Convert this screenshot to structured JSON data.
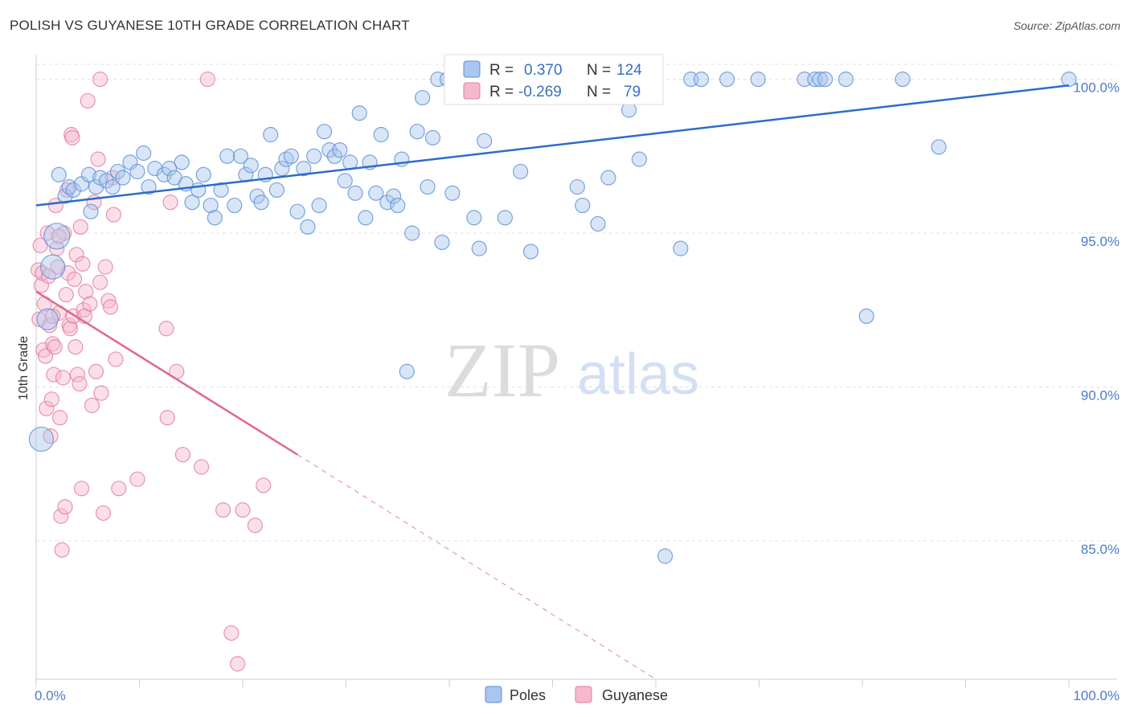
{
  "header": {
    "title": "POLISH VS GUYANESE 10TH GRADE CORRELATION CHART",
    "source": "Source: ZipAtlas.com"
  },
  "legend": {
    "rows": [
      {
        "r_label": "R =",
        "r_value": "0.370",
        "n_label": "N =",
        "n_value": "124"
      },
      {
        "r_label": "R =",
        "r_value": "-0.269",
        "n_label": "N =",
        "n_value": "79"
      }
    ]
  },
  "watermark": {
    "zip": "ZIP",
    "atlas": "atlas"
  },
  "colors": {
    "poles_fill": "#a8c6ee",
    "poles_stroke": "#5b8fd6",
    "poles_line": "#2d6cc8",
    "guyanese_fill": "#f6b8cc",
    "guyanese_stroke": "#e27ca0",
    "guyanese_line": "#e06893"
  },
  "chart_data": {
    "type": "scatter",
    "title": "POLISH VS GUYANESE 10TH GRADE CORRELATION CHART",
    "ylabel": "10th Grade",
    "xlim": [
      0,
      100
    ],
    "ylim": [
      80.5,
      100.8
    ],
    "y_ticks": [
      {
        "value": 85,
        "label": "85.0%"
      },
      {
        "value": 90,
        "label": "90.0%"
      },
      {
        "value": 95,
        "label": "95.0%"
      },
      {
        "value": 100,
        "label": "100.0%"
      }
    ],
    "x_tick_labels": [
      {
        "value": 0,
        "label": "0.0%"
      },
      {
        "value": 100,
        "label": "100.0%"
      }
    ],
    "grid": "horizontal dashed",
    "legend_placement": "top-center",
    "series": [
      {
        "name": "Poles",
        "r": 0.37,
        "n": 124,
        "trend": {
          "x": [
            0,
            100
          ],
          "y": [
            95.9,
            99.8
          ],
          "style": "solid"
        },
        "points": [
          [
            0.5,
            88.3
          ],
          [
            1.1,
            92.2
          ],
          [
            1.6,
            93.9
          ],
          [
            2.0,
            94.9
          ],
          [
            2.2,
            96.9
          ],
          [
            2.8,
            96.2
          ],
          [
            3.2,
            96.5
          ],
          [
            3.6,
            96.4
          ],
          [
            4.4,
            96.6
          ],
          [
            5.1,
            96.9
          ],
          [
            5.3,
            95.7
          ],
          [
            5.8,
            96.5
          ],
          [
            6.2,
            96.8
          ],
          [
            6.8,
            96.7
          ],
          [
            7.4,
            96.5
          ],
          [
            7.9,
            97.0
          ],
          [
            8.4,
            96.8
          ],
          [
            9.1,
            97.3
          ],
          [
            9.8,
            97.0
          ],
          [
            10.4,
            97.6
          ],
          [
            10.9,
            96.5
          ],
          [
            11.5,
            97.1
          ],
          [
            12.4,
            96.9
          ],
          [
            12.9,
            97.1
          ],
          [
            13.4,
            96.8
          ],
          [
            14.1,
            97.3
          ],
          [
            14.5,
            96.6
          ],
          [
            15.1,
            96.0
          ],
          [
            15.7,
            96.4
          ],
          [
            16.2,
            96.9
          ],
          [
            16.9,
            95.9
          ],
          [
            17.3,
            95.5
          ],
          [
            17.9,
            96.4
          ],
          [
            18.5,
            97.5
          ],
          [
            19.2,
            95.9
          ],
          [
            19.8,
            97.5
          ],
          [
            20.3,
            96.9
          ],
          [
            20.8,
            97.2
          ],
          [
            21.4,
            96.2
          ],
          [
            21.8,
            96.0
          ],
          [
            22.2,
            96.9
          ],
          [
            22.7,
            98.2
          ],
          [
            23.3,
            96.4
          ],
          [
            23.8,
            97.1
          ],
          [
            24.2,
            97.4
          ],
          [
            24.7,
            97.5
          ],
          [
            25.3,
            95.7
          ],
          [
            25.9,
            97.1
          ],
          [
            26.3,
            95.2
          ],
          [
            26.9,
            97.5
          ],
          [
            27.4,
            95.9
          ],
          [
            27.9,
            98.3
          ],
          [
            28.4,
            97.7
          ],
          [
            28.9,
            97.5
          ],
          [
            29.4,
            97.7
          ],
          [
            29.9,
            96.7
          ],
          [
            30.4,
            97.3
          ],
          [
            30.9,
            96.3
          ],
          [
            31.3,
            98.9
          ],
          [
            31.9,
            95.5
          ],
          [
            32.3,
            97.3
          ],
          [
            32.9,
            96.3
          ],
          [
            33.4,
            98.2
          ],
          [
            34.0,
            96.0
          ],
          [
            34.6,
            96.2
          ],
          [
            35.0,
            95.9
          ],
          [
            35.4,
            97.4
          ],
          [
            35.9,
            90.5
          ],
          [
            36.4,
            95.0
          ],
          [
            36.9,
            98.3
          ],
          [
            37.4,
            99.4
          ],
          [
            37.9,
            96.5
          ],
          [
            38.4,
            98.1
          ],
          [
            38.9,
            100.0
          ],
          [
            39.3,
            94.7
          ],
          [
            39.8,
            100.0
          ],
          [
            40.3,
            96.3
          ],
          [
            40.9,
            99.6
          ],
          [
            41.5,
            100.0
          ],
          [
            42.0,
            100.0
          ],
          [
            42.4,
            95.5
          ],
          [
            42.9,
            94.5
          ],
          [
            43.4,
            98.0
          ],
          [
            43.9,
            100.0
          ],
          [
            44.4,
            100.0
          ],
          [
            44.9,
            100.0
          ],
          [
            45.4,
            95.5
          ],
          [
            45.9,
            100.0
          ],
          [
            46.4,
            100.0
          ],
          [
            46.9,
            97.0
          ],
          [
            47.4,
            100.0
          ],
          [
            47.9,
            94.4
          ],
          [
            48.4,
            100.0
          ],
          [
            48.9,
            100.0
          ],
          [
            49.4,
            100.0
          ],
          [
            49.9,
            100.0
          ],
          [
            50.4,
            100.0
          ],
          [
            50.9,
            100.0
          ],
          [
            51.4,
            100.0
          ],
          [
            51.9,
            100.0
          ],
          [
            52.4,
            96.5
          ],
          [
            52.9,
            95.9
          ],
          [
            53.4,
            100.0
          ],
          [
            53.9,
            100.0
          ],
          [
            54.4,
            95.3
          ],
          [
            54.9,
            100.0
          ],
          [
            55.4,
            96.8
          ],
          [
            55.9,
            100.0
          ],
          [
            56.4,
            100.0
          ],
          [
            57.4,
            99.0
          ],
          [
            58.4,
            97.4
          ],
          [
            60.9,
            84.5
          ],
          [
            62.4,
            94.5
          ],
          [
            63.4,
            100.0
          ],
          [
            64.4,
            100.0
          ],
          [
            66.9,
            100.0
          ],
          [
            69.9,
            100.0
          ],
          [
            74.4,
            100.0
          ],
          [
            75.4,
            100.0
          ],
          [
            75.9,
            100.0
          ],
          [
            76.4,
            100.0
          ],
          [
            78.4,
            100.0
          ],
          [
            80.4,
            92.3
          ],
          [
            83.9,
            100.0
          ],
          [
            87.4,
            97.8
          ],
          [
            100.0,
            100.0
          ]
        ]
      },
      {
        "name": "Guyanese",
        "r": -0.269,
        "n": 79,
        "trend": {
          "x": [
            0,
            25.3
          ],
          "y": [
            93.1,
            87.8
          ],
          "style": "solid",
          "dashed_extension_to": [
            60.0,
            80.5
          ]
        },
        "points": [
          [
            0.2,
            93.8
          ],
          [
            0.3,
            92.2
          ],
          [
            0.4,
            94.6
          ],
          [
            0.5,
            93.3
          ],
          [
            0.6,
            93.7
          ],
          [
            0.7,
            91.2
          ],
          [
            0.8,
            92.7
          ],
          [
            0.9,
            91.0
          ],
          [
            1.0,
            89.3
          ],
          [
            1.1,
            95.0
          ],
          [
            1.2,
            93.6
          ],
          [
            1.3,
            92.0
          ],
          [
            1.4,
            88.4
          ],
          [
            1.5,
            89.6
          ],
          [
            1.6,
            91.4
          ],
          [
            1.7,
            90.4
          ],
          [
            1.8,
            91.3
          ],
          [
            1.9,
            95.9
          ],
          [
            2.0,
            94.5
          ],
          [
            2.1,
            93.9
          ],
          [
            2.2,
            92.4
          ],
          [
            2.3,
            89.0
          ],
          [
            2.4,
            85.8
          ],
          [
            2.5,
            84.7
          ],
          [
            2.6,
            90.3
          ],
          [
            2.7,
            95.0
          ],
          [
            2.8,
            86.1
          ],
          [
            2.9,
            93.0
          ],
          [
            3.0,
            96.4
          ],
          [
            3.1,
            93.7
          ],
          [
            3.2,
            92.0
          ],
          [
            3.3,
            91.9
          ],
          [
            3.4,
            98.2
          ],
          [
            3.5,
            98.1
          ],
          [
            3.6,
            92.3
          ],
          [
            3.7,
            93.5
          ],
          [
            3.8,
            91.3
          ],
          [
            3.9,
            94.3
          ],
          [
            4.0,
            90.4
          ],
          [
            4.2,
            90.1
          ],
          [
            4.3,
            95.2
          ],
          [
            4.4,
            86.7
          ],
          [
            4.5,
            94.0
          ],
          [
            4.6,
            92.5
          ],
          [
            4.7,
            92.3
          ],
          [
            4.8,
            93.1
          ],
          [
            5.0,
            99.3
          ],
          [
            5.2,
            92.7
          ],
          [
            5.4,
            89.4
          ],
          [
            5.6,
            96.0
          ],
          [
            5.8,
            90.5
          ],
          [
            6.0,
            97.4
          ],
          [
            6.2,
            93.4
          ],
          [
            6.3,
            89.8
          ],
          [
            6.5,
            85.9
          ],
          [
            6.7,
            93.9
          ],
          [
            7.0,
            92.8
          ],
          [
            7.2,
            92.6
          ],
          [
            7.5,
            95.6
          ],
          [
            7.7,
            90.9
          ],
          [
            8.0,
            86.7
          ],
          [
            9.8,
            87.0
          ],
          [
            12.6,
            91.9
          ],
          [
            12.7,
            89.0
          ],
          [
            13.0,
            96.0
          ],
          [
            13.6,
            90.5
          ],
          [
            14.2,
            87.8
          ],
          [
            16.0,
            87.4
          ],
          [
            16.6,
            100.0
          ],
          [
            18.1,
            86.0
          ],
          [
            18.9,
            82.0
          ],
          [
            19.5,
            81.0
          ],
          [
            20.0,
            86.0
          ],
          [
            21.2,
            85.5
          ],
          [
            22.0,
            86.8
          ],
          [
            6.2,
            100.0
          ],
          [
            7.4,
            96.8
          ],
          [
            1.6,
            92.3
          ],
          [
            2.2,
            94.9
          ]
        ]
      }
    ]
  }
}
